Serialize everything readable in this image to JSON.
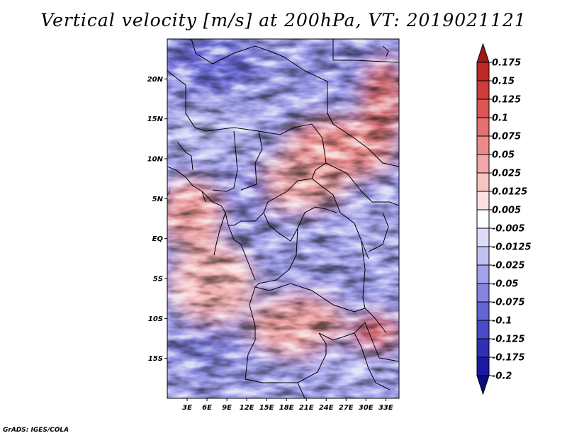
{
  "title": "Vertical velocity [m/s] at 200hPa, VT: 2019021121",
  "credit": "GrADS: IGES/COLA",
  "map": {
    "lon_range": [
      0,
      35
    ],
    "lat_range": [
      -20,
      25
    ],
    "lat_ticks": [
      {
        "value": 20,
        "label": "20N"
      },
      {
        "value": 15,
        "label": "15N"
      },
      {
        "value": 10,
        "label": "10N"
      },
      {
        "value": 5,
        "label": "5N"
      },
      {
        "value": 0,
        "label": "EQ"
      },
      {
        "value": -5,
        "label": "5S"
      },
      {
        "value": -10,
        "label": "10S"
      },
      {
        "value": -15,
        "label": "15S"
      }
    ],
    "lon_ticks": [
      {
        "value": 3,
        "label": "3E"
      },
      {
        "value": 6,
        "label": "6E"
      },
      {
        "value": 9,
        "label": "9E"
      },
      {
        "value": 12,
        "label": "12E"
      },
      {
        "value": 15,
        "label": "15E"
      },
      {
        "value": 18,
        "label": "18E"
      },
      {
        "value": 21,
        "label": "21E"
      },
      {
        "value": 24,
        "label": "24E"
      },
      {
        "value": 27,
        "label": "27E"
      },
      {
        "value": 30,
        "label": "30E"
      },
      {
        "value": 33,
        "label": "33E"
      }
    ]
  },
  "colorbar": {
    "levels": [
      "0.175",
      "0.15",
      "0.125",
      "0.1",
      "0.075",
      "0.05",
      "0.025",
      "0.0125",
      "0.005",
      "-0.005",
      "-0.0125",
      "-0.025",
      "-0.05",
      "-0.075",
      "-0.1",
      "-0.125",
      "-0.175",
      "-0.2"
    ],
    "colors": [
      "#a01818",
      "#c02828",
      "#d03c3c",
      "#dc5656",
      "#e47070",
      "#ec8a8a",
      "#f2a6a6",
      "#f7c4c4",
      "#fbe0e0",
      "#ffffff",
      "#dcdcf8",
      "#c0c0f2",
      "#a2a2ea",
      "#8484e0",
      "#6464d4",
      "#4a4ac6",
      "#3030b4",
      "#1a1aa0",
      "#0c0c80"
    ]
  }
}
